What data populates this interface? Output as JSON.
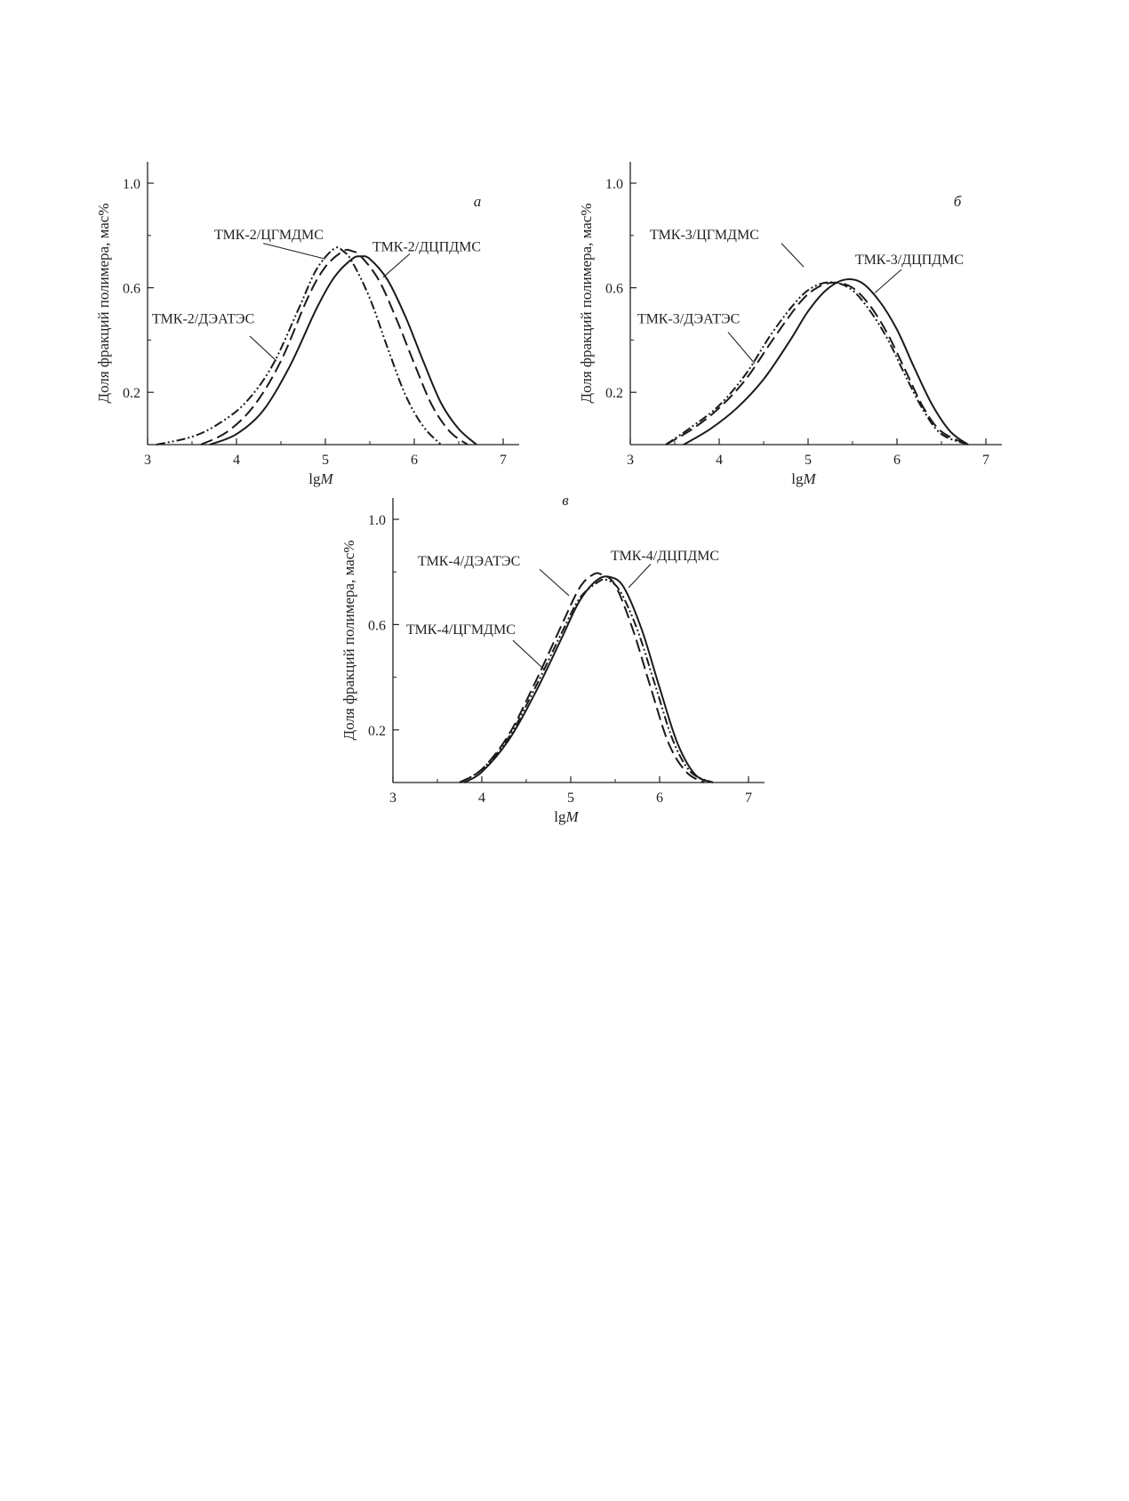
{
  "chart_data": [
    {
      "type": "line",
      "panel": "а",
      "xlabel": "lgM",
      "xlabel_parts": [
        "lg",
        "M"
      ],
      "ylabel": "Доля фракций полимера, мас%",
      "xlim": [
        3,
        7.2
      ],
      "ylim": [
        0,
        1.08
      ],
      "xticks": [
        3,
        4,
        5,
        6,
        7
      ],
      "yticks": [
        0.2,
        0.6,
        1.0
      ],
      "ytick_labels": [
        "0.2",
        "0.6",
        "1.0"
      ],
      "grid": false,
      "series": [
        {
          "name": "ТМК-2/ДЦПДМС",
          "style": "solid",
          "x": [
            3.7,
            4.0,
            4.3,
            4.6,
            4.9,
            5.1,
            5.3,
            5.4,
            5.5,
            5.7,
            5.9,
            6.1,
            6.3,
            6.5,
            6.7
          ],
          "y": [
            0.0,
            0.04,
            0.13,
            0.3,
            0.52,
            0.64,
            0.71,
            0.72,
            0.71,
            0.63,
            0.49,
            0.32,
            0.16,
            0.06,
            0.0
          ]
        },
        {
          "name": "ТМК-2/ЦГМДМС",
          "style": "dashed",
          "x": [
            3.6,
            3.9,
            4.2,
            4.5,
            4.8,
            5.0,
            5.2,
            5.3,
            5.4,
            5.6,
            5.8,
            6.0,
            6.2,
            6.4,
            6.6
          ],
          "y": [
            0.0,
            0.05,
            0.15,
            0.32,
            0.56,
            0.68,
            0.74,
            0.74,
            0.72,
            0.63,
            0.48,
            0.31,
            0.15,
            0.05,
            0.0
          ]
        },
        {
          "name": "ТМК-2/ДЭАТЭС",
          "style": "dash-dot-dot",
          "x": [
            3.1,
            3.5,
            3.8,
            4.1,
            4.4,
            4.7,
            4.9,
            5.1,
            5.2,
            5.3,
            5.5,
            5.7,
            5.9,
            6.1,
            6.3
          ],
          "y": [
            0.0,
            0.03,
            0.08,
            0.16,
            0.3,
            0.52,
            0.67,
            0.75,
            0.74,
            0.7,
            0.56,
            0.37,
            0.19,
            0.07,
            0.0
          ]
        }
      ],
      "annotations": [
        {
          "text": "ТМК-2/ЦГМДМС",
          "x": 3.75,
          "y": 0.785,
          "tx": 4.3,
          "ty": 0.77,
          "px": 5.0,
          "py": 0.71
        },
        {
          "text": "ТМК-2/ДЦПДМС",
          "x": 5.53,
          "y": 0.74,
          "tx": 5.95,
          "ty": 0.73,
          "px": 5.65,
          "py": 0.64
        },
        {
          "text": "ТМК-2/ДЭАТЭС",
          "x": 3.05,
          "y": 0.465,
          "tx": 4.15,
          "ty": 0.415,
          "px": 4.45,
          "py": 0.32
        }
      ]
    },
    {
      "type": "line",
      "panel": "б",
      "xlabel": "lgM",
      "xlabel_parts": [
        "lg",
        "M"
      ],
      "ylabel": "Доля фракций полимера, мас%",
      "xlim": [
        3,
        7.2
      ],
      "ylim": [
        0,
        1.08
      ],
      "xticks": [
        3,
        4,
        5,
        6,
        7
      ],
      "yticks": [
        0.2,
        0.6,
        1.0
      ],
      "ytick_labels": [
        "0.2",
        "0.6",
        "1.0"
      ],
      "grid": false,
      "series": [
        {
          "name": "ТМК-3/ДЦПДМС",
          "style": "solid",
          "x": [
            3.6,
            3.9,
            4.2,
            4.5,
            4.8,
            5.0,
            5.2,
            5.4,
            5.6,
            5.8,
            6.0,
            6.2,
            6.4,
            6.6,
            6.8
          ],
          "y": [
            0.0,
            0.06,
            0.14,
            0.25,
            0.4,
            0.51,
            0.59,
            0.63,
            0.62,
            0.55,
            0.44,
            0.29,
            0.15,
            0.05,
            0.0
          ]
        },
        {
          "name": "ТМК-3/ЦГМДМС",
          "style": "dashed",
          "x": [
            3.4,
            3.7,
            4.0,
            4.3,
            4.6,
            4.9,
            5.1,
            5.3,
            5.5,
            5.7,
            5.9,
            6.1,
            6.3,
            6.5,
            6.8
          ],
          "y": [
            0.0,
            0.06,
            0.14,
            0.25,
            0.4,
            0.54,
            0.6,
            0.62,
            0.6,
            0.53,
            0.42,
            0.28,
            0.14,
            0.05,
            0.0
          ]
        },
        {
          "name": "ТМК-3/ДЭАТЭС",
          "style": "dash-dot-dot",
          "x": [
            3.4,
            3.7,
            4.0,
            4.3,
            4.6,
            4.9,
            5.1,
            5.3,
            5.5,
            5.7,
            5.9,
            6.1,
            6.3,
            6.5,
            6.8
          ],
          "y": [
            0.0,
            0.07,
            0.15,
            0.27,
            0.43,
            0.56,
            0.61,
            0.62,
            0.59,
            0.51,
            0.4,
            0.26,
            0.13,
            0.04,
            0.0
          ]
        }
      ],
      "annotations": [
        {
          "text": "ТМК-3/ЦГМДМС",
          "x": 3.22,
          "y": 0.785,
          "tx": 4.7,
          "ty": 0.77,
          "px": 4.95,
          "py": 0.68
        },
        {
          "text": "ТМК-3/ДЦПДМС",
          "x": 5.53,
          "y": 0.69,
          "tx": 6.05,
          "ty": 0.67,
          "px": 5.75,
          "py": 0.58
        },
        {
          "text": "ТМК-3/ДЭАТЭС",
          "x": 3.08,
          "y": 0.465,
          "tx": 4.1,
          "ty": 0.43,
          "px": 4.4,
          "py": 0.31
        }
      ]
    },
    {
      "type": "line",
      "panel": "в",
      "xlabel": "lgM",
      "xlabel_parts": [
        "lg",
        "M"
      ],
      "ylabel": "Доля фракций полимера, мас%",
      "xlim": [
        3,
        7.2
      ],
      "ylim": [
        0,
        1.08
      ],
      "xticks": [
        3,
        4,
        5,
        6,
        7
      ],
      "yticks": [
        0.2,
        0.6,
        1.0
      ],
      "ytick_labels": [
        "0.2",
        "0.6",
        "1.0"
      ],
      "grid": false,
      "series": [
        {
          "name": "ТМК-4/ДЦПДМС",
          "style": "solid",
          "x": [
            3.8,
            4.0,
            4.3,
            4.6,
            4.9,
            5.1,
            5.3,
            5.45,
            5.6,
            5.8,
            6.0,
            6.2,
            6.4,
            6.6
          ],
          "y": [
            0.0,
            0.04,
            0.16,
            0.34,
            0.55,
            0.69,
            0.77,
            0.78,
            0.74,
            0.58,
            0.36,
            0.15,
            0.03,
            0.0
          ]
        },
        {
          "name": "ТМК-4/ДЭАТЭС",
          "style": "dashed",
          "x": [
            3.75,
            4.0,
            4.3,
            4.6,
            4.9,
            5.1,
            5.25,
            5.35,
            5.5,
            5.7,
            5.9,
            6.1,
            6.3,
            6.5
          ],
          "y": [
            0.0,
            0.05,
            0.18,
            0.38,
            0.6,
            0.74,
            0.79,
            0.79,
            0.75,
            0.58,
            0.36,
            0.15,
            0.04,
            0.0
          ]
        },
        {
          "name": "ТМК-4/ЦГМДМС",
          "style": "dash-dot-dot",
          "x": [
            3.75,
            4.0,
            4.3,
            4.6,
            4.9,
            5.1,
            5.3,
            5.4,
            5.55,
            5.75,
            5.95,
            6.15,
            6.35,
            6.6
          ],
          "y": [
            0.0,
            0.05,
            0.17,
            0.36,
            0.57,
            0.7,
            0.76,
            0.77,
            0.73,
            0.58,
            0.37,
            0.16,
            0.04,
            0.0
          ]
        }
      ],
      "annotations": [
        {
          "text": "ТМК-4/ДЭАТЭС",
          "x": 3.28,
          "y": 0.825,
          "tx": 4.65,
          "ty": 0.81,
          "px": 4.98,
          "py": 0.71
        },
        {
          "text": "ТМК-4/ДЦПДМС",
          "x": 5.45,
          "y": 0.845,
          "tx": 5.9,
          "ty": 0.83,
          "px": 5.65,
          "py": 0.74
        },
        {
          "text": "ТМК-4/ЦГМДМС",
          "x": 3.15,
          "y": 0.565,
          "tx": 4.35,
          "ty": 0.54,
          "px": 4.7,
          "py": 0.43
        }
      ]
    }
  ]
}
